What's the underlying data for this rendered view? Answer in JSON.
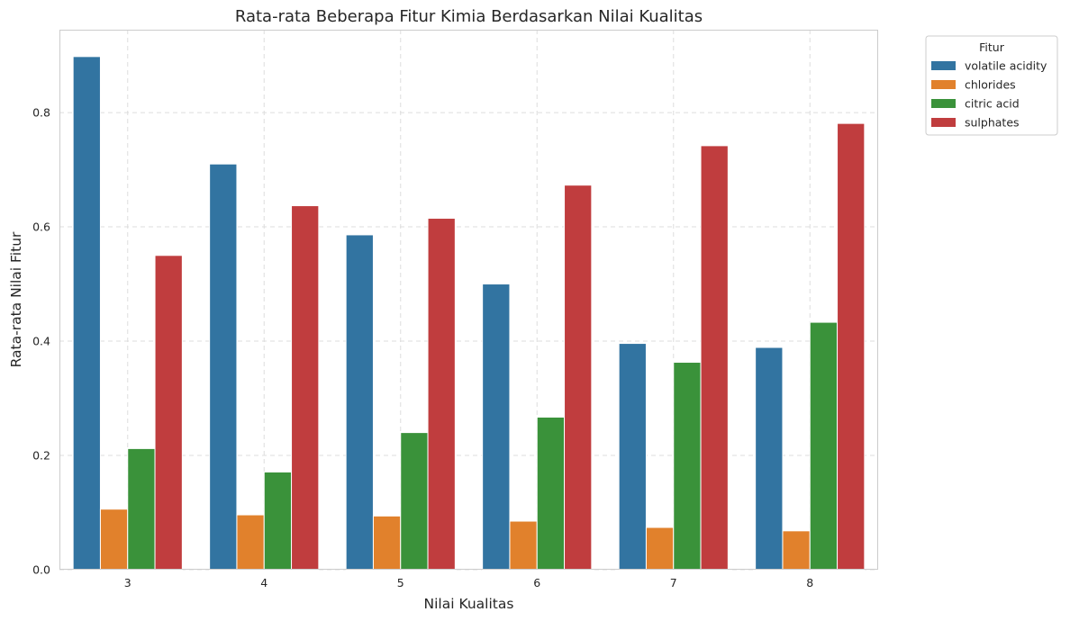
{
  "chart_data": {
    "type": "bar",
    "title": "Rata-rata Beberapa Fitur Kimia Berdasarkan Nilai Kualitas",
    "xlabel": "Nilai Kualitas",
    "ylabel": "Rata-rata Nilai Fitur",
    "categories": [
      "3",
      "4",
      "5",
      "6",
      "7",
      "8"
    ],
    "ylim": [
      0,
      0.945
    ],
    "yticks": [
      0.0,
      0.2,
      0.4,
      0.6,
      0.8
    ],
    "ytick_labels": [
      "0.0",
      "0.2",
      "0.4",
      "0.6",
      "0.8"
    ],
    "grid": true,
    "legend": {
      "title": "Fitur",
      "placement": "outside-top-right"
    },
    "series": [
      {
        "name": "volatile acidity",
        "color": "#3274a1",
        "values": [
          0.898,
          0.71,
          0.586,
          0.5,
          0.396,
          0.389
        ]
      },
      {
        "name": "chlorides",
        "color": "#e1812c",
        "values": [
          0.106,
          0.096,
          0.094,
          0.085,
          0.074,
          0.068
        ]
      },
      {
        "name": "citric acid",
        "color": "#3a923a",
        "values": [
          0.212,
          0.171,
          0.24,
          0.267,
          0.363,
          0.433
        ]
      },
      {
        "name": "sulphates",
        "color": "#c03d3e",
        "values": [
          0.55,
          0.637,
          0.615,
          0.673,
          0.742,
          0.781
        ]
      }
    ]
  }
}
